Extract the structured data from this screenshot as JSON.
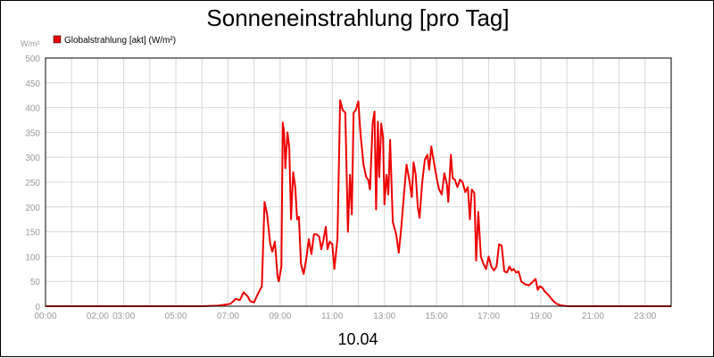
{
  "chart_data": {
    "type": "line",
    "title": "Sonneneinstrahlung [pro Tag]",
    "ylabel": "W/m²",
    "xlabel": "10.04",
    "ylim": [
      0,
      500
    ],
    "xlim": [
      0,
      24
    ],
    "y_ticks": [
      "0",
      "50",
      "100",
      "150",
      "200",
      "250",
      "300",
      "350",
      "400",
      "450",
      "500"
    ],
    "x_ticks": [
      {
        "t": 0,
        "label": "00:00"
      },
      {
        "t": 2,
        "label": "02:00"
      },
      {
        "t": 3,
        "label": "03:00"
      },
      {
        "t": 5,
        "label": "05:00"
      },
      {
        "t": 7,
        "label": "07:00"
      },
      {
        "t": 9,
        "label": "09:00"
      },
      {
        "t": 11,
        "label": "11:00"
      },
      {
        "t": 13,
        "label": "13:00"
      },
      {
        "t": 15,
        "label": "15:00"
      },
      {
        "t": 17,
        "label": "17:00"
      },
      {
        "t": 19,
        "label": "19:00"
      },
      {
        "t": 21,
        "label": "21:00"
      },
      {
        "t": 23,
        "label": "23:00"
      }
    ],
    "grid": true,
    "legend_position": "top-left",
    "series": [
      {
        "name": "Globalstrahlung [akt] (W/m²)",
        "color": "#ee0000",
        "points": [
          [
            0,
            0
          ],
          [
            6.0,
            0
          ],
          [
            6.6,
            1
          ],
          [
            6.9,
            3
          ],
          [
            7.1,
            5
          ],
          [
            7.3,
            15
          ],
          [
            7.45,
            12
          ],
          [
            7.6,
            28
          ],
          [
            7.75,
            20
          ],
          [
            7.85,
            10
          ],
          [
            8.0,
            8
          ],
          [
            8.15,
            25
          ],
          [
            8.3,
            40
          ],
          [
            8.4,
            210
          ],
          [
            8.5,
            185
          ],
          [
            8.62,
            125
          ],
          [
            8.7,
            110
          ],
          [
            8.8,
            130
          ],
          [
            8.9,
            60
          ],
          [
            8.95,
            50
          ],
          [
            9.05,
            80
          ],
          [
            9.1,
            370
          ],
          [
            9.15,
            350
          ],
          [
            9.2,
            278
          ],
          [
            9.28,
            350
          ],
          [
            9.35,
            320
          ],
          [
            9.42,
            175
          ],
          [
            9.5,
            270
          ],
          [
            9.58,
            240
          ],
          [
            9.65,
            175
          ],
          [
            9.72,
            180
          ],
          [
            9.8,
            85
          ],
          [
            9.9,
            65
          ],
          [
            10.0,
            95
          ],
          [
            10.1,
            135
          ],
          [
            10.2,
            105
          ],
          [
            10.3,
            145
          ],
          [
            10.4,
            145
          ],
          [
            10.5,
            140
          ],
          [
            10.58,
            115
          ],
          [
            10.65,
            130
          ],
          [
            10.75,
            160
          ],
          [
            10.82,
            115
          ],
          [
            10.9,
            130
          ],
          [
            11.0,
            125
          ],
          [
            11.08,
            75
          ],
          [
            11.2,
            135
          ],
          [
            11.3,
            415
          ],
          [
            11.4,
            395
          ],
          [
            11.5,
            390
          ],
          [
            11.6,
            150
          ],
          [
            11.68,
            265
          ],
          [
            11.75,
            185
          ],
          [
            11.82,
            390
          ],
          [
            11.9,
            395
          ],
          [
            12.0,
            413
          ],
          [
            12.08,
            350
          ],
          [
            12.2,
            285
          ],
          [
            12.3,
            260
          ],
          [
            12.38,
            255
          ],
          [
            12.45,
            235
          ],
          [
            12.55,
            370
          ],
          [
            12.62,
            392
          ],
          [
            12.68,
            195
          ],
          [
            12.75,
            372
          ],
          [
            12.8,
            260
          ],
          [
            12.88,
            368
          ],
          [
            12.95,
            340
          ],
          [
            13.0,
            205
          ],
          [
            13.08,
            265
          ],
          [
            13.15,
            225
          ],
          [
            13.22,
            335
          ],
          [
            13.32,
            170
          ],
          [
            13.45,
            145
          ],
          [
            13.55,
            108
          ],
          [
            13.65,
            160
          ],
          [
            13.75,
            225
          ],
          [
            13.85,
            285
          ],
          [
            13.95,
            255
          ],
          [
            14.05,
            220
          ],
          [
            14.12,
            290
          ],
          [
            14.2,
            265
          ],
          [
            14.28,
            200
          ],
          [
            14.35,
            178
          ],
          [
            14.45,
            250
          ],
          [
            14.55,
            295
          ],
          [
            14.65,
            305
          ],
          [
            14.72,
            275
          ],
          [
            14.8,
            322
          ],
          [
            14.9,
            290
          ],
          [
            15.0,
            260
          ],
          [
            15.1,
            235
          ],
          [
            15.2,
            225
          ],
          [
            15.3,
            268
          ],
          [
            15.4,
            245
          ],
          [
            15.45,
            210
          ],
          [
            15.55,
            305
          ],
          [
            15.62,
            258
          ],
          [
            15.7,
            255
          ],
          [
            15.8,
            240
          ],
          [
            15.9,
            255
          ],
          [
            16.0,
            250
          ],
          [
            16.1,
            230
          ],
          [
            16.2,
            240
          ],
          [
            16.28,
            175
          ],
          [
            16.35,
            235
          ],
          [
            16.45,
            228
          ],
          [
            16.52,
            92
          ],
          [
            16.6,
            190
          ],
          [
            16.7,
            100
          ],
          [
            16.8,
            85
          ],
          [
            16.9,
            75
          ],
          [
            17.0,
            100
          ],
          [
            17.1,
            80
          ],
          [
            17.2,
            72
          ],
          [
            17.3,
            80
          ],
          [
            17.4,
            125
          ],
          [
            17.5,
            122
          ],
          [
            17.6,
            70
          ],
          [
            17.7,
            68
          ],
          [
            17.8,
            80
          ],
          [
            17.88,
            72
          ],
          [
            17.96,
            75
          ],
          [
            18.05,
            68
          ],
          [
            18.15,
            70
          ],
          [
            18.25,
            50
          ],
          [
            18.4,
            44
          ],
          [
            18.55,
            42
          ],
          [
            18.7,
            50
          ],
          [
            18.8,
            55
          ],
          [
            18.88,
            33
          ],
          [
            18.96,
            40
          ],
          [
            19.05,
            38
          ],
          [
            19.15,
            30
          ],
          [
            19.3,
            22
          ],
          [
            19.45,
            12
          ],
          [
            19.6,
            5
          ],
          [
            19.75,
            2
          ],
          [
            20.0,
            0
          ],
          [
            24.0,
            0
          ]
        ]
      }
    ]
  }
}
